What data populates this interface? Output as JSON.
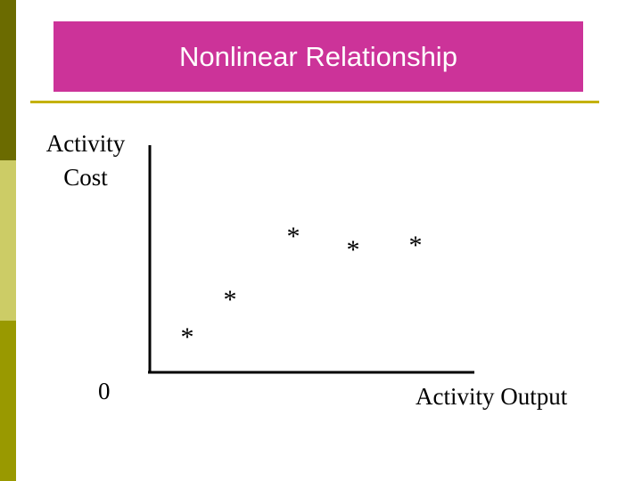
{
  "slide": {
    "title": "Nonlinear Relationship",
    "title_background_color": "#cc3399",
    "title_text_color": "#ffffff",
    "rule_color": "#c4b100",
    "sidebar_colors": [
      "#6b6b00",
      "#cccc66",
      "#999900"
    ]
  },
  "chart_data": {
    "type": "scatter",
    "title": "Nonlinear Relationship",
    "ylabel_lines": [
      "Activity",
      "Cost"
    ],
    "xlabel": "Activity Output",
    "origin_label": "0",
    "marker": "*",
    "axis_ticks": "none",
    "grid": false
  }
}
